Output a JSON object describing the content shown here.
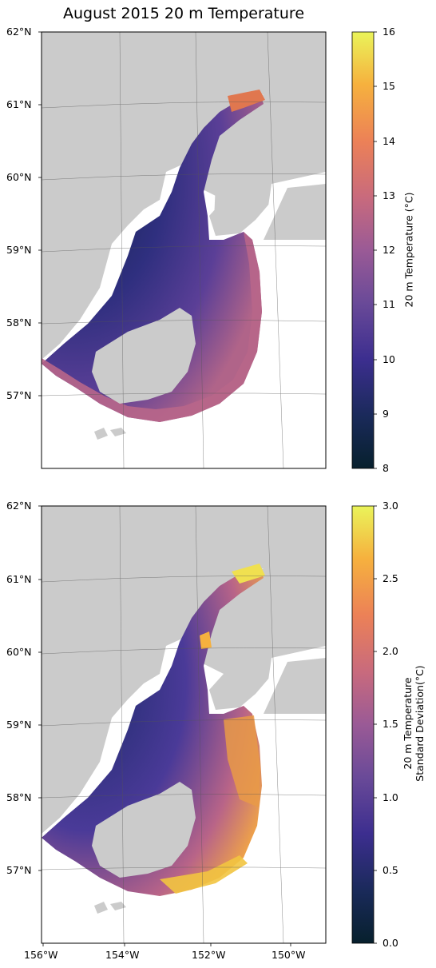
{
  "title": "August 2015 20 m Temperature",
  "maps": {
    "top": {
      "lat_labels": [
        "62°N",
        "61°N",
        "60°N",
        "59°N",
        "58°N",
        "57°N"
      ],
      "colorbar": {
        "label": "20 m Temperature (°C)",
        "ticks": [
          "16",
          "15",
          "14",
          "13",
          "12",
          "11",
          "10",
          "9",
          "8"
        ],
        "min": 8,
        "max": 16
      }
    },
    "bottom": {
      "lat_labels": [
        "62°N",
        "61°N",
        "60°N",
        "59°N",
        "58°N",
        "57°N"
      ],
      "lon_labels": [
        "156°W",
        "154°W",
        "152°W",
        "150°W"
      ],
      "colorbar": {
        "label_line1": "20 m Temperature",
        "label_line2": "Standard Deviation(°C)",
        "ticks": [
          "3.0",
          "2.5",
          "2.0",
          "1.5",
          "1.0",
          "0.5",
          "0.0"
        ],
        "min": 0.0,
        "max": 3.0
      }
    }
  },
  "colors": {
    "land": "#cbcbcb",
    "frame": "#000000",
    "colormap": [
      "#07202d",
      "#1a2a5a",
      "#3c2e8f",
      "#6a4a98",
      "#9a5a96",
      "#c86a7d",
      "#ec8157",
      "#f6b13e",
      "#eaf45a"
    ]
  }
}
